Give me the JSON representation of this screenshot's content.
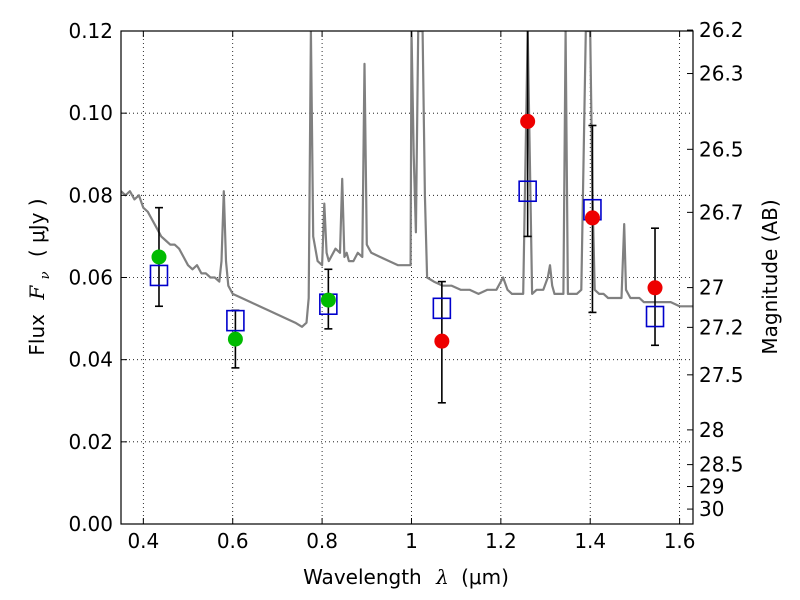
{
  "chart_data": {
    "type": "scatter",
    "xlabel": "Wavelength  λ (μm)",
    "ylabel": "Flux  F_ν  ( μJy )",
    "ylabel_parts": {
      "pre": "Flux",
      "sym": "F",
      "sub": "ν",
      "post": "( μJy )"
    },
    "xlabel_parts": {
      "pre": "Wavelength",
      "sym": "λ",
      "post": "(μm)"
    },
    "y2label": "Magnitude (AB)",
    "xlim": [
      0.35,
      1.63
    ],
    "ylim": [
      0.0,
      0.12
    ],
    "xticks": [
      0.4,
      0.6,
      0.8,
      1.0,
      1.2,
      1.4,
      1.6
    ],
    "xtick_labels": [
      "0.4",
      "0.6",
      "0.8",
      "1",
      "1.2",
      "1.4",
      "1.6"
    ],
    "yticks": [
      0.0,
      0.02,
      0.04,
      0.06,
      0.08,
      0.1,
      0.12
    ],
    "ytick_labels": [
      "0.00",
      "0.02",
      "0.04",
      "0.06",
      "0.08",
      "0.10",
      "0.12"
    ],
    "mag_ticks": [
      26.2,
      26.3,
      26.5,
      26.7,
      27,
      27.2,
      27.5,
      28,
      28.5,
      29,
      30
    ],
    "mag_tick_labels": [
      "26.2",
      "26.3",
      "26.5",
      "26.7",
      "27",
      "27.2",
      "27.5",
      "28",
      "28.5",
      "29",
      "30"
    ],
    "grid": true,
    "colors": {
      "model_spectrum": "#808080",
      "model_photometry": "#0000cc",
      "optical_detection": "#00bb00",
      "nir_detection": "#ee0000",
      "errorbar": "#000000"
    },
    "series": [
      {
        "marker": "open-square",
        "color": "#0000cc",
        "points": [
          {
            "x": 0.435,
            "y": 0.0605
          },
          {
            "x": 0.606,
            "y": 0.0495
          },
          {
            "x": 0.814,
            "y": 0.0535
          },
          {
            "x": 1.068,
            "y": 0.0525
          },
          {
            "x": 1.26,
            "y": 0.081
          },
          {
            "x": 1.405,
            "y": 0.0765
          },
          {
            "x": 1.545,
            "y": 0.0505
          }
        ]
      },
      {
        "marker": "filled-circle",
        "color": "#00bb00",
        "points": [
          {
            "x": 0.435,
            "y": 0.065,
            "err_lo": 0.053,
            "err_hi": 0.077
          },
          {
            "x": 0.606,
            "y": 0.045,
            "err_lo": 0.038,
            "err_hi": 0.052
          },
          {
            "x": 0.814,
            "y": 0.0545,
            "err_lo": 0.0475,
            "err_hi": 0.062
          }
        ]
      },
      {
        "marker": "filled-circle",
        "color": "#ee0000",
        "points": [
          {
            "x": 1.068,
            "y": 0.0445,
            "err_lo": 0.0295,
            "err_hi": 0.059
          },
          {
            "x": 1.26,
            "y": 0.098,
            "err_lo": 0.07,
            "err_hi": 0.126
          },
          {
            "x": 1.405,
            "y": 0.0745,
            "err_lo": 0.0515,
            "err_hi": 0.097
          },
          {
            "x": 1.545,
            "y": 0.0575,
            "err_lo": 0.0435,
            "err_hi": 0.072
          }
        ]
      }
    ],
    "spectrum": {
      "x": [
        0.35,
        0.36,
        0.37,
        0.38,
        0.39,
        0.4,
        0.41,
        0.42,
        0.43,
        0.44,
        0.45,
        0.46,
        0.47,
        0.48,
        0.49,
        0.5,
        0.51,
        0.52,
        0.53,
        0.54,
        0.55,
        0.56,
        0.57,
        0.575,
        0.58,
        0.585,
        0.59,
        0.6,
        0.62,
        0.64,
        0.66,
        0.68,
        0.7,
        0.72,
        0.74,
        0.755,
        0.765,
        0.77,
        0.775,
        0.78,
        0.79,
        0.8,
        0.805,
        0.81,
        0.815,
        0.82,
        0.83,
        0.84,
        0.845,
        0.85,
        0.855,
        0.86,
        0.87,
        0.88,
        0.89,
        0.895,
        0.9,
        0.905,
        0.91,
        0.93,
        0.95,
        0.97,
        0.99,
        0.998,
        1.0,
        1.005,
        1.01,
        1.015,
        1.02,
        1.025,
        1.03,
        1.035,
        1.05,
        1.07,
        1.09,
        1.11,
        1.13,
        1.15,
        1.17,
        1.19,
        1.205,
        1.215,
        1.225,
        1.235,
        1.25,
        1.26,
        1.27,
        1.28,
        1.295,
        1.305,
        1.31,
        1.315,
        1.32,
        1.33,
        1.34,
        1.345,
        1.35,
        1.36,
        1.37,
        1.38,
        1.39,
        1.4,
        1.405,
        1.41,
        1.42,
        1.43,
        1.44,
        1.45,
        1.46,
        1.47,
        1.476,
        1.48,
        1.485,
        1.49,
        1.5,
        1.51,
        1.52,
        1.53,
        1.54,
        1.55,
        1.56,
        1.58,
        1.6,
        1.63
      ],
      "y": [
        0.081,
        0.08,
        0.081,
        0.079,
        0.08,
        0.077,
        0.076,
        0.074,
        0.072,
        0.07,
        0.069,
        0.068,
        0.068,
        0.067,
        0.065,
        0.063,
        0.062,
        0.063,
        0.061,
        0.061,
        0.06,
        0.06,
        0.059,
        0.064,
        0.081,
        0.064,
        0.058,
        0.056,
        0.055,
        0.054,
        0.053,
        0.052,
        0.051,
        0.05,
        0.049,
        0.048,
        0.049,
        0.055,
        0.12,
        0.07,
        0.064,
        0.063,
        0.078,
        0.066,
        0.064,
        0.065,
        0.067,
        0.066,
        0.084,
        0.065,
        0.066,
        0.064,
        0.064,
        0.066,
        0.065,
        0.112,
        0.068,
        0.067,
        0.066,
        0.065,
        0.064,
        0.063,
        0.063,
        0.063,
        0.12,
        0.09,
        0.071,
        0.12,
        0.12,
        0.12,
        0.08,
        0.06,
        0.059,
        0.058,
        0.058,
        0.057,
        0.057,
        0.056,
        0.057,
        0.057,
        0.06,
        0.057,
        0.056,
        0.056,
        0.056,
        0.12,
        0.056,
        0.057,
        0.057,
        0.06,
        0.063,
        0.058,
        0.056,
        0.056,
        0.056,
        0.12,
        0.056,
        0.056,
        0.056,
        0.057,
        0.12,
        0.12,
        0.08,
        0.057,
        0.056,
        0.056,
        0.055,
        0.055,
        0.055,
        0.055,
        0.073,
        0.057,
        0.056,
        0.055,
        0.055,
        0.055,
        0.054,
        0.054,
        0.054,
        0.054,
        0.054,
        0.054,
        0.053,
        0.053
      ]
    }
  }
}
